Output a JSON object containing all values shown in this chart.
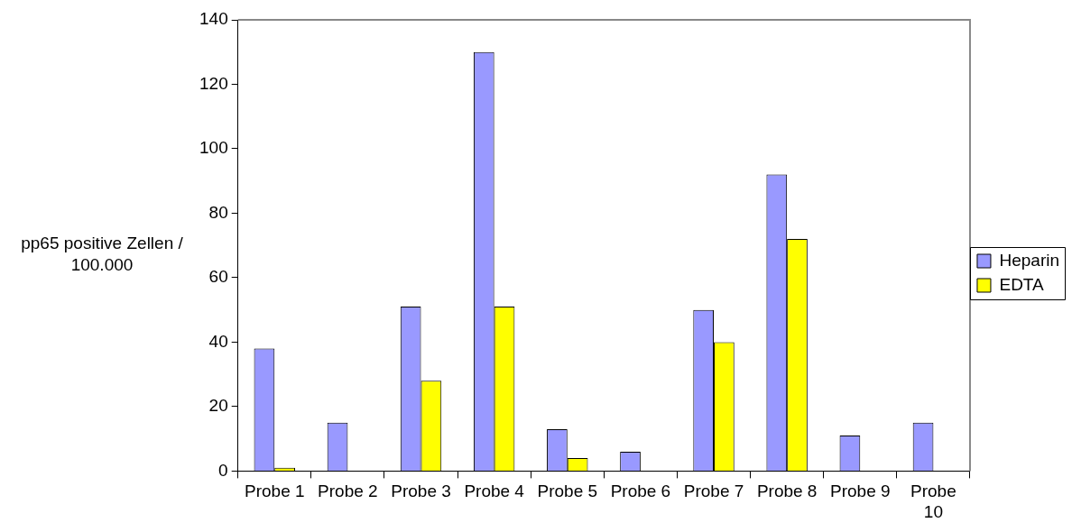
{
  "chart_data": {
    "type": "bar",
    "ylabel": "pp65 positive Zellen / 100.000",
    "categories": [
      "Probe 1",
      "Probe 2",
      "Probe 3",
      "Probe 4",
      "Probe 5",
      "Probe 6",
      "Probe 7",
      "Probe 8",
      "Probe 9",
      "Probe 10"
    ],
    "series": [
      {
        "name": "Heparin",
        "color": "#9999ff",
        "values": [
          38,
          15,
          51,
          130,
          13,
          6,
          50,
          92,
          11,
          15
        ]
      },
      {
        "name": "EDTA",
        "color": "#ffff00",
        "values": [
          1,
          0,
          28,
          51,
          4,
          0,
          40,
          72,
          0,
          0
        ]
      }
    ],
    "ylim": [
      0,
      140
    ],
    "yticks": [
      0,
      20,
      40,
      60,
      80,
      100,
      120,
      140
    ],
    "legend": "right"
  }
}
